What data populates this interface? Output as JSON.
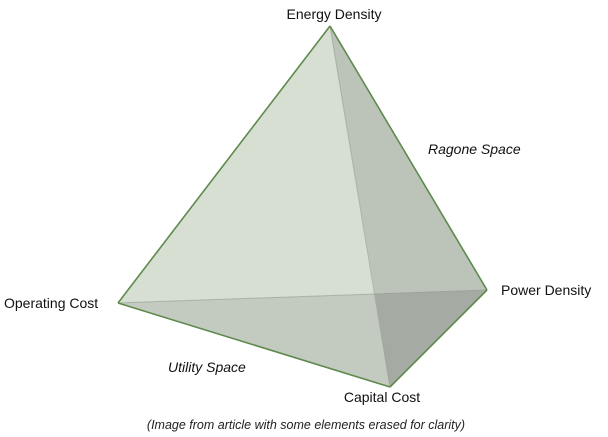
{
  "vertices": {
    "top": "Energy Density",
    "right": "Power Density",
    "left": "Operating Cost",
    "bottom": "Capital Cost"
  },
  "regions": {
    "ragone": "Ragone Space",
    "utility": "Utility Space"
  },
  "caption": "(Image from article with some elements erased for clarity)",
  "colors": {
    "edge": "#5e8a4e",
    "face_front": "#d6dfd1",
    "face_right": "#bcc3b8",
    "face_bottom": "#c3cac0",
    "face_shadow": "#a5aba3"
  }
}
